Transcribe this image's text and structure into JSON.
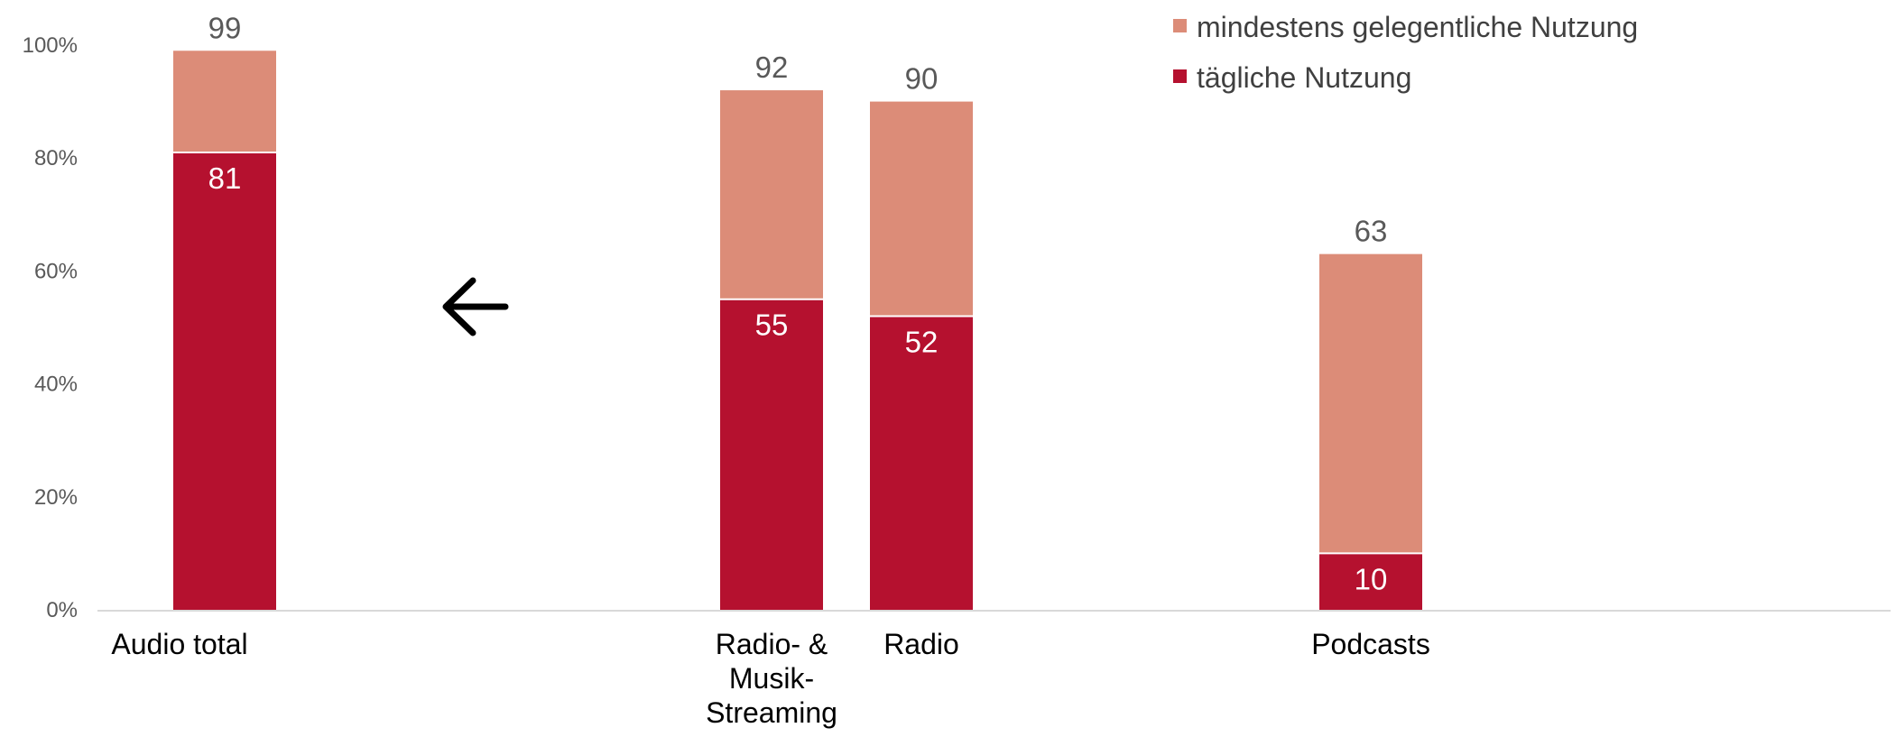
{
  "chart_data": {
    "type": "bar",
    "stacked": true,
    "title": "",
    "xlabel": "",
    "ylabel": "",
    "ylim": [
      0,
      100
    ],
    "yticks": [
      0,
      20,
      40,
      60,
      80,
      100
    ],
    "ytick_suffix": "%",
    "grid": false,
    "legend_position": "top-right",
    "categories": [
      {
        "label_lines": [
          "Audio total"
        ]
      },
      {
        "label_lines": [
          "Radio- &",
          "Musik-",
          "Streaming"
        ]
      },
      {
        "label_lines": [
          "Radio"
        ]
      },
      {
        "label_lines": [
          "Podcasts"
        ]
      }
    ],
    "series": [
      {
        "name": "tägliche Nutzung",
        "color": "#b5112f",
        "values": [
          81,
          55,
          52,
          10
        ]
      },
      {
        "name": "mindestens gelegentliche Nutzung",
        "color": "#dc8c78",
        "values": [
          18,
          37,
          38,
          53
        ]
      }
    ],
    "totals": [
      99,
      92,
      90,
      63
    ],
    "annotation": {
      "glyph": "🡐",
      "icon": "left-arrow-icon"
    }
  }
}
